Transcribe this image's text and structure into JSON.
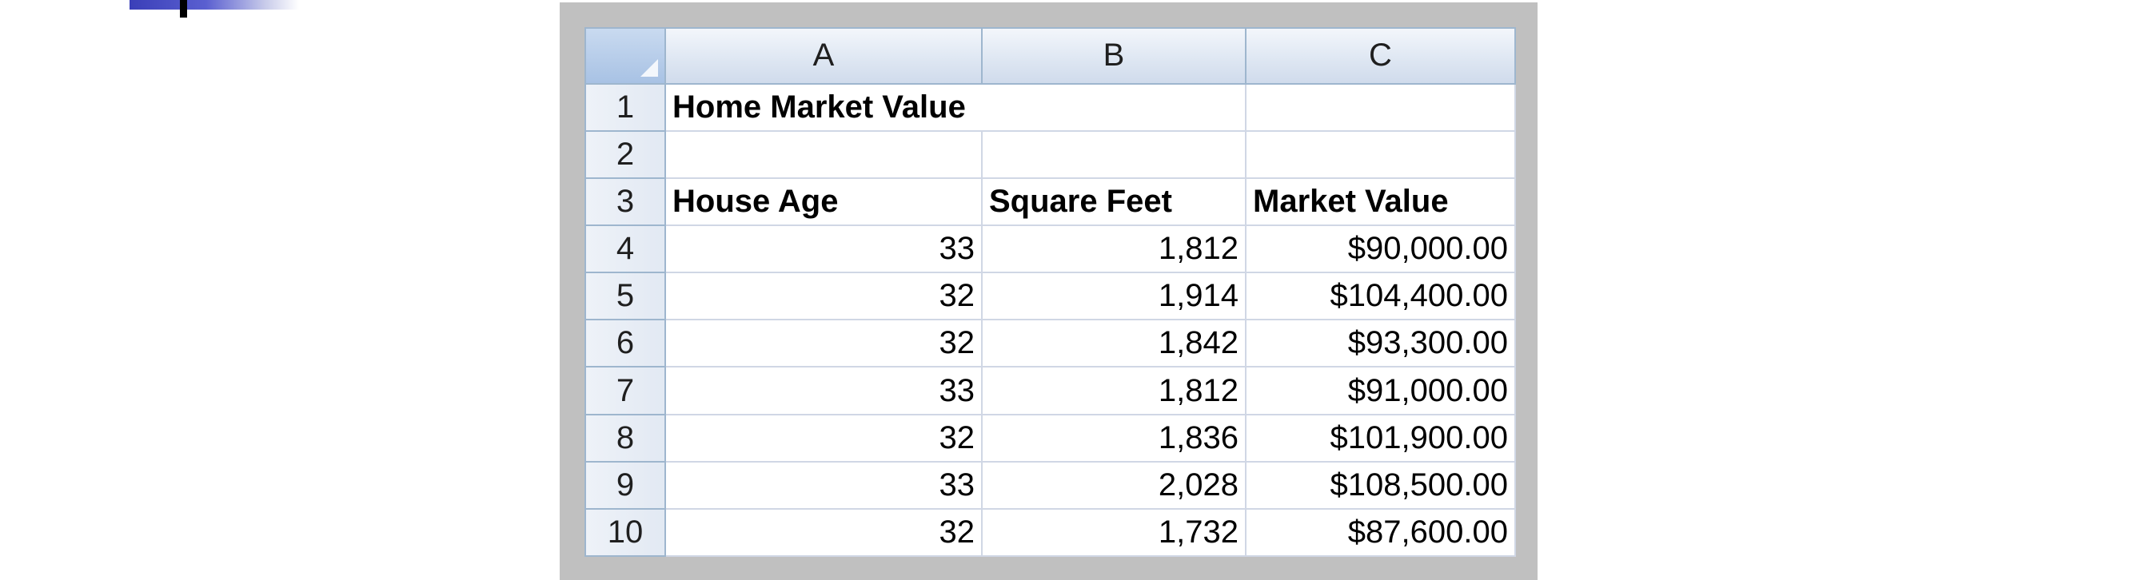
{
  "spreadsheet": {
    "column_headers": [
      "A",
      "B",
      "C"
    ],
    "title": "Home Market Value",
    "row_numbers": [
      "1",
      "2",
      "3",
      "4",
      "5",
      "6",
      "7",
      "8",
      "9",
      "10"
    ],
    "headers": [
      "House Age",
      "Square Feet",
      "Market Value"
    ],
    "rows": [
      [
        "33",
        "1,812",
        "$90,000.00"
      ],
      [
        "32",
        "1,914",
        "$104,400.00"
      ],
      [
        "32",
        "1,842",
        "$93,300.00"
      ],
      [
        "33",
        "1,812",
        "$91,000.00"
      ],
      [
        "32",
        "1,836",
        "$101,900.00"
      ],
      [
        "33",
        "2,028",
        "$108,500.00"
      ],
      [
        "32",
        "1,732",
        "$87,600.00"
      ]
    ]
  },
  "colors": {
    "grid": "#d0d7e5",
    "header_border": "#9eb6ce",
    "frame": "#c0c0c0",
    "deco_bar": "#3a3fb8"
  }
}
